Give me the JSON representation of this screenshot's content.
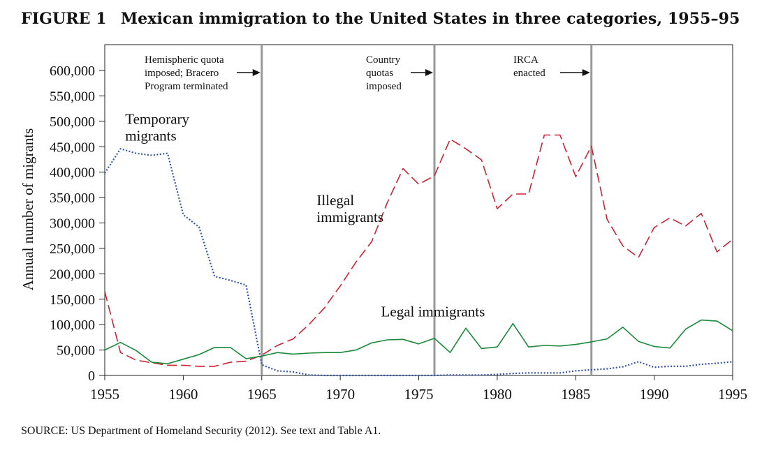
{
  "figure": {
    "number": "FIGURE 1",
    "title": "Mexican immigration to the United States in three categories, 1955–95",
    "source": "SOURCE: US Department of Homeland Security (2012). See text and Table A1."
  },
  "chart_data": {
    "type": "line",
    "xlim": [
      1955,
      1995
    ],
    "ylim": [
      0,
      650000
    ],
    "ylabel": "Annual number of migrants",
    "xlabel": "",
    "x_ticks": [
      1955,
      1960,
      1965,
      1970,
      1975,
      1980,
      1985,
      1990,
      1995
    ],
    "x_tick_labels": [
      "1955",
      "1960",
      "1965",
      "1970",
      "1975",
      "1980",
      "1985",
      "1990",
      "1995"
    ],
    "y_ticks": [
      0,
      50000,
      100000,
      150000,
      200000,
      250000,
      300000,
      350000,
      400000,
      450000,
      500000,
      550000,
      600000
    ],
    "y_tick_labels": [
      "0",
      "50,000",
      "100,000",
      "150,000",
      "200,000",
      "250,000",
      "300,000",
      "350,000",
      "400,000",
      "450,000",
      "500,000",
      "550,000",
      "600,000"
    ],
    "grid": false,
    "series": [
      {
        "name": "Temporary migrants",
        "color": "#3355aa",
        "style": "dotted",
        "x": [
          1955,
          1956,
          1957,
          1958,
          1959,
          1960,
          1961,
          1962,
          1963,
          1964,
          1965,
          1966,
          1967,
          1968,
          1969,
          1970,
          1971,
          1972,
          1973,
          1974,
          1975,
          1976,
          1977,
          1978,
          1979,
          1980,
          1981,
          1982,
          1983,
          1984,
          1985,
          1986,
          1987,
          1988,
          1989,
          1990,
          1991,
          1992,
          1993,
          1994,
          1995
        ],
        "values": [
          398000,
          446000,
          437000,
          433000,
          437000,
          316000,
          292000,
          195000,
          187000,
          178000,
          21000,
          9000,
          7000,
          1000,
          0,
          0,
          0,
          0,
          0,
          0,
          0,
          0,
          1000,
          1000,
          1000,
          2000,
          4000,
          5000,
          5000,
          5000,
          9000,
          11000,
          13000,
          17000,
          27000,
          16000,
          18000,
          18000,
          22000,
          24000,
          27000
        ]
      },
      {
        "name": "Illegal immigrants",
        "color": "#cc2233",
        "style": "dashed",
        "x": [
          1955,
          1956,
          1957,
          1958,
          1959,
          1960,
          1961,
          1962,
          1963,
          1964,
          1965,
          1966,
          1967,
          1968,
          1969,
          1970,
          1971,
          1972,
          1973,
          1974,
          1975,
          1976,
          1977,
          1978,
          1979,
          1980,
          1981,
          1982,
          1983,
          1984,
          1985,
          1986,
          1987,
          1988,
          1989,
          1990,
          1991,
          1992,
          1993,
          1994,
          1995
        ],
        "values": [
          165000,
          45000,
          30000,
          25000,
          20000,
          20000,
          18000,
          18000,
          26000,
          28000,
          40000,
          59000,
          72000,
          100000,
          133000,
          176000,
          223000,
          263000,
          340000,
          407000,
          376000,
          393000,
          465000,
          446000,
          424000,
          328000,
          357000,
          357000,
          473000,
          473000,
          391000,
          451000,
          307000,
          255000,
          232000,
          291000,
          310000,
          294000,
          319000,
          243000,
          268000
        ]
      },
      {
        "name": "Legal immigrants",
        "color": "#1a8a3a",
        "style": "solid",
        "x": [
          1955,
          1956,
          1957,
          1958,
          1959,
          1960,
          1961,
          1962,
          1963,
          1964,
          1965,
          1966,
          1967,
          1968,
          1969,
          1970,
          1971,
          1972,
          1973,
          1974,
          1975,
          1976,
          1977,
          1978,
          1979,
          1980,
          1981,
          1982,
          1983,
          1984,
          1985,
          1986,
          1987,
          1988,
          1989,
          1990,
          1991,
          1992,
          1993,
          1994,
          1995
        ],
        "values": [
          50000,
          65000,
          49000,
          26000,
          23000,
          32000,
          41000,
          55000,
          55000,
          33000,
          38000,
          45000,
          42000,
          44000,
          45000,
          45000,
          50000,
          64000,
          70000,
          71000,
          62000,
          73000,
          45000,
          93000,
          53000,
          56000,
          102000,
          56000,
          59000,
          58000,
          61000,
          66000,
          72000,
          95000,
          67000,
          57000,
          54000,
          91000,
          109000,
          107000,
          88000
        ]
      }
    ],
    "series_labels": [
      {
        "text": [
          "Temporary",
          "migrants"
        ],
        "x": 1956.3,
        "y": 495000,
        "anchor": "start"
      },
      {
        "text": [
          "Illegal",
          "immigrants"
        ],
        "x": 1968.5,
        "y": 335000,
        "anchor": "start"
      },
      {
        "text": [
          "Legal immigrants"
        ],
        "x": 1972.6,
        "y": 116000,
        "anchor": "start"
      }
    ],
    "events": [
      {
        "year": 1965,
        "label": [
          "Hemispheric quota",
          "imposed; Bracero",
          "Program terminated"
        ]
      },
      {
        "year": 1976,
        "label": [
          "Country",
          "quotas",
          "imposed"
        ]
      },
      {
        "year": 1986,
        "label": [
          "IRCA",
          "enacted"
        ]
      }
    ]
  }
}
